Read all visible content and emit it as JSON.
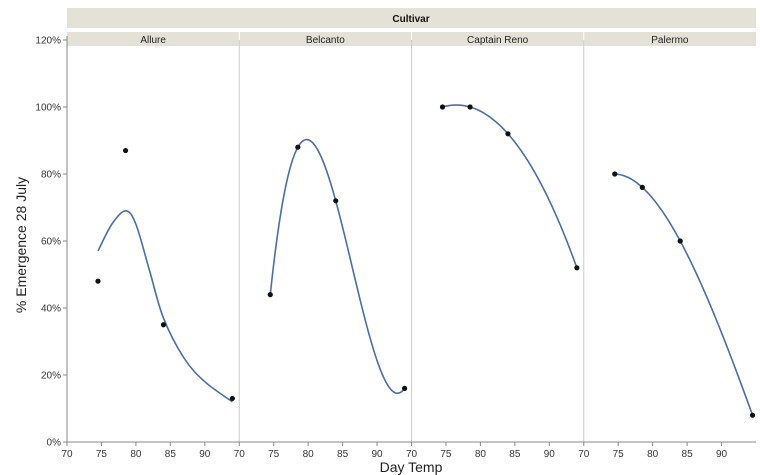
{
  "chart_data": {
    "type": "scatter",
    "group_label": "Cultivar",
    "xlabel": "Day Temp",
    "ylabel": "% Emergence 28 July",
    "xlim": [
      70,
      95
    ],
    "ylim": [
      0,
      120
    ],
    "x_ticks": [
      70,
      75,
      80,
      85,
      90
    ],
    "x_tick_labels": [
      "70",
      "75",
      "80",
      "85",
      "90"
    ],
    "y_ticks": [
      0,
      20,
      40,
      60,
      80,
      100,
      120
    ],
    "y_tick_labels": [
      "0%",
      "20%",
      "40%",
      "60%",
      "80%",
      "100%",
      "120%"
    ],
    "grid": false,
    "fit": "smooth curve",
    "colors": {
      "points": "#111111",
      "fit": "#4a6ea8",
      "header": "#e4e2d6",
      "divider": "#cccccc"
    },
    "facets": [
      {
        "name": "Allure",
        "points": [
          {
            "x": 74.5,
            "y": 48
          },
          {
            "x": 78.5,
            "y": 87
          },
          {
            "x": 84,
            "y": 35
          },
          {
            "x": 94,
            "y": 13
          }
        ],
        "curve": [
          {
            "x": 74.5,
            "y": 57
          },
          {
            "x": 76.5,
            "y": 65
          },
          {
            "x": 78.5,
            "y": 69
          },
          {
            "x": 80,
            "y": 65
          },
          {
            "x": 82,
            "y": 51
          },
          {
            "x": 84,
            "y": 37
          },
          {
            "x": 87,
            "y": 25
          },
          {
            "x": 90,
            "y": 18
          },
          {
            "x": 94,
            "y": 12
          }
        ]
      },
      {
        "name": "Belcanto",
        "points": [
          {
            "x": 74.5,
            "y": 44
          },
          {
            "x": 78.5,
            "y": 88
          },
          {
            "x": 84,
            "y": 72
          },
          {
            "x": 94,
            "y": 16
          }
        ]
      },
      {
        "name": "Captain Reno",
        "points": [
          {
            "x": 74.5,
            "y": 100
          },
          {
            "x": 78.5,
            "y": 100
          },
          {
            "x": 84,
            "y": 92
          },
          {
            "x": 94,
            "y": 52
          }
        ]
      },
      {
        "name": "Palermo",
        "points": [
          {
            "x": 74.5,
            "y": 80
          },
          {
            "x": 78.5,
            "y": 76
          },
          {
            "x": 84,
            "y": 60
          },
          {
            "x": 94.5,
            "y": 8
          }
        ]
      }
    ]
  }
}
